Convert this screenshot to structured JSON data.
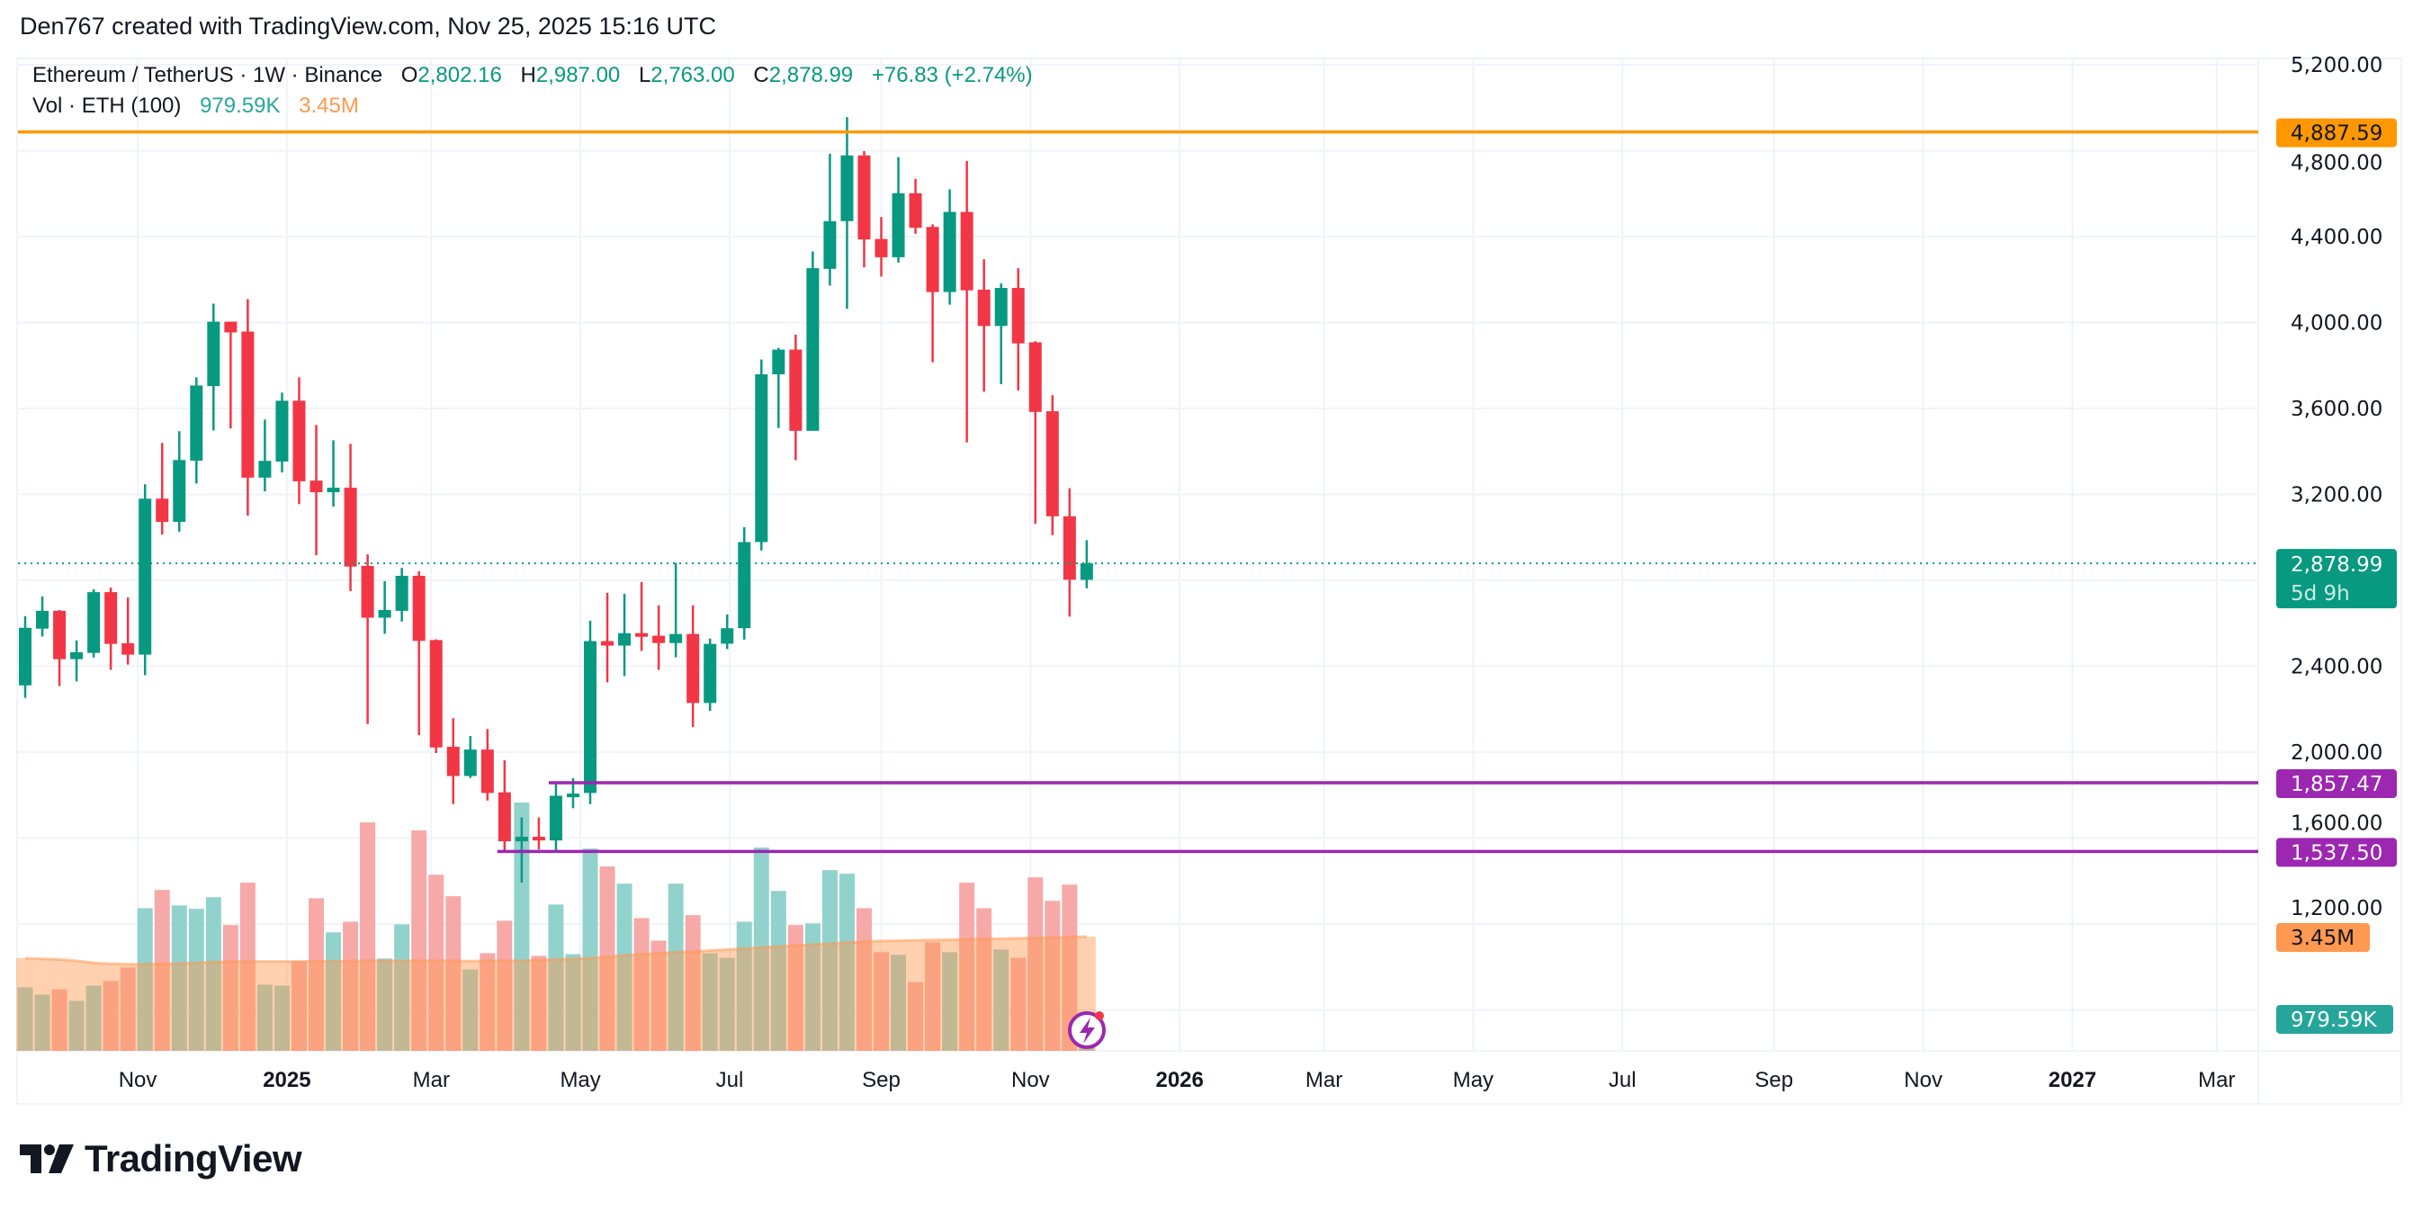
{
  "header": {
    "created_text": "Den767 created with TradingView.com, Nov 25, 2025 15:16 UTC"
  },
  "legend": {
    "symbol": "Ethereum / TetherUS · 1W · Binance",
    "o_label": "O",
    "o": "2,802.16",
    "h_label": "H",
    "h": "2,987.00",
    "l_label": "L",
    "l": "2,763.00",
    "c_label": "C",
    "c": "2,878.99",
    "change": "+76.83 (+2.74%)",
    "vol_label": "Vol · ETH (100)",
    "vol": "979.59K",
    "vol_ma": "3.45M"
  },
  "colors": {
    "up": "#089981",
    "down": "#f23645",
    "vol_up": "#92d2cc",
    "vol_down": "#f7a9a8",
    "vol_ma": "#ff9850",
    "resistance_line": "#ff9800",
    "support_line": "#9c27b0",
    "grid": "#f0f3fa"
  },
  "chart_data": {
    "type": "candlestick",
    "timeframe": "1W",
    "columns": [
      "date",
      "open",
      "high",
      "low",
      "close",
      "volume_millions",
      "volume_ma_millions"
    ],
    "candles": [
      [
        "2024-09-16",
        2311,
        2633,
        2253,
        2579,
        1.92,
        2.8
      ],
      [
        "2024-09-23",
        2575,
        2725,
        2538,
        2658,
        1.7,
        2.78
      ],
      [
        "2024-09-30",
        2658,
        2662,
        2308,
        2433,
        1.86,
        2.76
      ],
      [
        "2024-10-07",
        2433,
        2520,
        2329,
        2465,
        1.51,
        2.72
      ],
      [
        "2024-10-14",
        2462,
        2758,
        2441,
        2745,
        1.97,
        2.66
      ],
      [
        "2024-10-21",
        2745,
        2766,
        2383,
        2504,
        2.11,
        2.63
      ],
      [
        "2024-10-28",
        2507,
        2720,
        2408,
        2454,
        2.52,
        2.62
      ],
      [
        "2024-11-04",
        2454,
        3247,
        2358,
        3180,
        4.31,
        2.62
      ],
      [
        "2024-11-11",
        3180,
        3440,
        3013,
        3072,
        4.86,
        2.63
      ],
      [
        "2024-11-18",
        3072,
        3494,
        3026,
        3360,
        4.39,
        2.64
      ],
      [
        "2024-11-25",
        3357,
        3745,
        3251,
        3707,
        4.29,
        2.66
      ],
      [
        "2024-12-02",
        3704,
        4088,
        3498,
        4004,
        4.64,
        2.68
      ],
      [
        "2024-12-09",
        4004,
        4004,
        3507,
        3954,
        3.8,
        2.7
      ],
      [
        "2024-12-16",
        3958,
        4109,
        3101,
        3278,
        5.08,
        2.7
      ],
      [
        "2024-12-23",
        3278,
        3548,
        3214,
        3356,
        2.0,
        2.7
      ],
      [
        "2024-12-30",
        3353,
        3674,
        3302,
        3636,
        1.97,
        2.7
      ],
      [
        "2025-01-06",
        3636,
        3745,
        3155,
        3261,
        2.71,
        2.7
      ],
      [
        "2025-01-13",
        3264,
        3523,
        2917,
        3210,
        4.61,
        2.71
      ],
      [
        "2025-01-20",
        3210,
        3452,
        3143,
        3231,
        3.58,
        2.71
      ],
      [
        "2025-01-27",
        3231,
        3435,
        2750,
        2864,
        3.9,
        2.71
      ],
      [
        "2025-02-03",
        2867,
        2921,
        2131,
        2626,
        6.9,
        2.72
      ],
      [
        "2025-02-10",
        2626,
        2796,
        2551,
        2662,
        2.79,
        2.72
      ],
      [
        "2025-02-17",
        2658,
        2858,
        2608,
        2821,
        3.82,
        2.72
      ],
      [
        "2025-02-24",
        2821,
        2842,
        2079,
        2518,
        6.66,
        2.72
      ],
      [
        "2025-03-03",
        2522,
        2525,
        1996,
        2022,
        5.32,
        2.72
      ],
      [
        "2025-03-10",
        2025,
        2158,
        1758,
        1889,
        4.67,
        2.72
      ],
      [
        "2025-03-17",
        1889,
        2075,
        1880,
        2012,
        2.46,
        2.71
      ],
      [
        "2025-03-24",
        2012,
        2108,
        1775,
        1810,
        2.95,
        2.72
      ],
      [
        "2025-03-31",
        1813,
        1962,
        1539,
        1585,
        3.93,
        2.72
      ],
      [
        "2025-04-07",
        1585,
        1696,
        1393,
        1606,
        7.5,
        2.72
      ],
      [
        "2025-04-14",
        1606,
        1696,
        1547,
        1589,
        2.87,
        2.74
      ],
      [
        "2025-04-21",
        1589,
        1864,
        1543,
        1797,
        4.42,
        2.76
      ],
      [
        "2025-04-28",
        1790,
        1879,
        1739,
        1807,
        2.92,
        2.78
      ],
      [
        "2025-05-05",
        1810,
        2612,
        1758,
        2517,
        6.11,
        2.8
      ],
      [
        "2025-05-12",
        2517,
        2742,
        2325,
        2496,
        5.57,
        2.84
      ],
      [
        "2025-05-19",
        2496,
        2737,
        2354,
        2554,
        5.05,
        2.88
      ],
      [
        "2025-05-26",
        2554,
        2792,
        2471,
        2537,
        4.01,
        2.92
      ],
      [
        "2025-06-02",
        2542,
        2683,
        2383,
        2508,
        3.33,
        2.95
      ],
      [
        "2025-06-09",
        2508,
        2881,
        2442,
        2550,
        5.05,
        2.98
      ],
      [
        "2025-06-16",
        2550,
        2683,
        2117,
        2229,
        4.1,
        3.0
      ],
      [
        "2025-06-23",
        2229,
        2529,
        2192,
        2504,
        2.95,
        3.03
      ],
      [
        "2025-06-30",
        2505,
        2641,
        2480,
        2577,
        2.81,
        3.06
      ],
      [
        "2025-07-07",
        2577,
        3047,
        2524,
        2978,
        3.9,
        3.09
      ],
      [
        "2025-07-14",
        2978,
        3828,
        2939,
        3759,
        6.14,
        3.12
      ],
      [
        "2025-07-21",
        3759,
        3882,
        3509,
        3874,
        4.83,
        3.15
      ],
      [
        "2025-07-28",
        3874,
        3944,
        3359,
        3496,
        3.8,
        3.18
      ],
      [
        "2025-08-04",
        3496,
        4331,
        3496,
        4253,
        3.85,
        3.21
      ],
      [
        "2025-08-11",
        4250,
        4786,
        4172,
        4472,
        5.46,
        3.24
      ],
      [
        "2025-08-18",
        4472,
        4956,
        4064,
        4778,
        5.35,
        3.27
      ],
      [
        "2025-08-25",
        4778,
        4798,
        4257,
        4387,
        4.31,
        3.3
      ],
      [
        "2025-09-01",
        4389,
        4491,
        4214,
        4304,
        2.98,
        3.32
      ],
      [
        "2025-09-08",
        4304,
        4770,
        4279,
        4602,
        2.9,
        3.33
      ],
      [
        "2025-09-15",
        4602,
        4669,
        4413,
        4441,
        2.08,
        3.34
      ],
      [
        "2025-09-22",
        4445,
        4457,
        3815,
        4142,
        3.28,
        3.35
      ],
      [
        "2025-09-29",
        4142,
        4620,
        4083,
        4515,
        2.98,
        3.36
      ],
      [
        "2025-10-06",
        4515,
        4752,
        3442,
        4150,
        5.08,
        3.37
      ],
      [
        "2025-10-13",
        4153,
        4295,
        3678,
        3984,
        4.31,
        3.38
      ],
      [
        "2025-10-20",
        3984,
        4182,
        3713,
        4161,
        3.06,
        3.39
      ],
      [
        "2025-10-27",
        4161,
        4253,
        3684,
        3903,
        2.81,
        3.4
      ],
      [
        "2025-11-03",
        3908,
        3913,
        3063,
        3584,
        5.24,
        3.41
      ],
      [
        "2025-11-10",
        3587,
        3662,
        3010,
        3098,
        4.53,
        3.42
      ],
      [
        "2025-11-17",
        3098,
        3229,
        2631,
        2803,
        5.02,
        3.44
      ],
      [
        "2025-11-24",
        2802.16,
        2987.0,
        2763.0,
        2878.99,
        0.97959,
        3.45
      ]
    ],
    "price_axis": {
      "ylim": [
        1200,
        5200
      ],
      "ticks": [
        {
          "value": 5200,
          "label": "5,200.00"
        },
        {
          "value": 4800,
          "label": "4,800.00"
        },
        {
          "value": 4400,
          "label": "4,400.00"
        },
        {
          "value": 4000,
          "label": "4,000.00"
        },
        {
          "value": 3600,
          "label": "3,600.00"
        },
        {
          "value": 3200,
          "label": "3,200.00"
        },
        {
          "value": 2400,
          "label": "2,400.00"
        },
        {
          "value": 2000,
          "label": "2,000.00"
        },
        {
          "value": 1600,
          "label": "1,600.00"
        },
        {
          "value": 1200,
          "label": "1,200.00"
        }
      ],
      "grid_levels": [
        5200,
        4800,
        4400,
        4000,
        3600,
        3200,
        2800,
        2400,
        2000,
        1600,
        1200,
        800
      ]
    },
    "time_axis": {
      "ticks": [
        {
          "date": "2024-11-01",
          "label": "Nov",
          "bold": false
        },
        {
          "date": "2025-01-01",
          "label": "2025",
          "bold": true
        },
        {
          "date": "2025-03-01",
          "label": "Mar",
          "bold": false
        },
        {
          "date": "2025-05-01",
          "label": "May",
          "bold": false
        },
        {
          "date": "2025-07-01",
          "label": "Jul",
          "bold": false
        },
        {
          "date": "2025-09-01",
          "label": "Sep",
          "bold": false
        },
        {
          "date": "2025-11-01",
          "label": "Nov",
          "bold": false
        },
        {
          "date": "2026-01-01",
          "label": "2026",
          "bold": true
        },
        {
          "date": "2026-03-01",
          "label": "Mar",
          "bold": false
        },
        {
          "date": "2026-05-01",
          "label": "May",
          "bold": false
        },
        {
          "date": "2026-07-01",
          "label": "Jul",
          "bold": false
        },
        {
          "date": "2026-09-01",
          "label": "Sep",
          "bold": false
        },
        {
          "date": "2026-11-01",
          "label": "Nov",
          "bold": false
        },
        {
          "date": "2027-01-01",
          "label": "2027",
          "bold": true
        },
        {
          "date": "2027-03-01",
          "label": "Mar",
          "bold": false
        }
      ]
    },
    "horizontal_lines": [
      {
        "price": 4887.59,
        "label": "4,887.59",
        "color": "#ff9800",
        "from_date": null
      },
      {
        "price": 1857.47,
        "label": "1,857.47",
        "color": "#9c27b0",
        "from_date": "2025-04-21"
      },
      {
        "price": 1537.5,
        "label": "1,537.50",
        "color": "#9c27b0",
        "from_date": "2025-03-31"
      }
    ],
    "last_price": {
      "price": 2878.99,
      "label": "2,878.99",
      "countdown": "5d 9h",
      "color": "#089981"
    },
    "volume_tags": {
      "ma_label": "3.45M",
      "ma_color": "#ff9850",
      "vol_label": "979.59K",
      "vol_color": "#26a69a"
    }
  },
  "logo": {
    "text": "TradingView"
  }
}
